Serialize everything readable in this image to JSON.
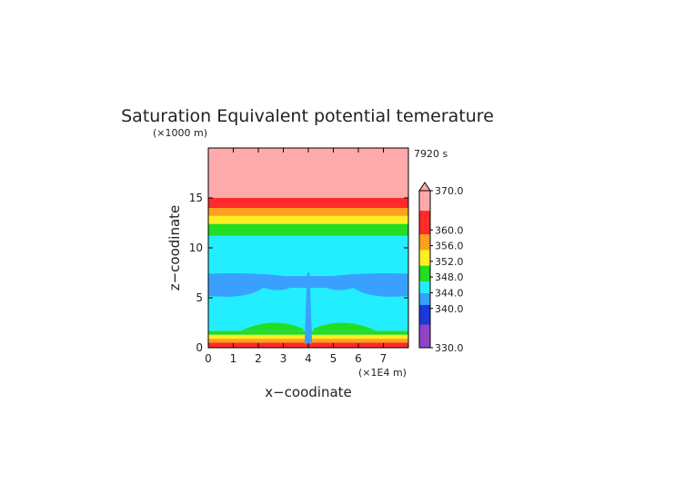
{
  "chart_data": {
    "type": "heatmap",
    "title": "Saturation Equivalent potential temerature",
    "xlabel": "x−coodinate",
    "ylabel": "z−coodinate",
    "x_unit": "(×1E4 m)",
    "y_unit": "(×1000 m)",
    "time_label": "7920 s",
    "xlim": [
      0,
      8
    ],
    "ylim": [
      0,
      20
    ],
    "x_ticks": [
      0,
      1,
      2,
      3,
      4,
      5,
      6,
      7
    ],
    "y_ticks": [
      0,
      5,
      10,
      15
    ],
    "colorbar": {
      "range": [
        330,
        370
      ],
      "tick_values": [
        370.0,
        360.0,
        356.0,
        352.0,
        348.0,
        344.0,
        340.0,
        330.0
      ],
      "tick_labels": [
        "370.0",
        "360.0",
        "356.0",
        "352.0",
        "348.0",
        "344.0",
        "340.0",
        "330.0"
      ],
      "extend": "max"
    },
    "field": [
      {
        "z": [
          0,
          0.5
        ],
        "value": 361
      },
      {
        "z": [
          0.5,
          0.9
        ],
        "value": 357
      },
      {
        "z": [
          0.9,
          1.3
        ],
        "value": 353
      },
      {
        "z": [
          1.3,
          1.7
        ],
        "value": 349
      },
      {
        "z": [
          1.7,
          6.0
        ],
        "value": 345
      },
      {
        "z": [
          6.0,
          7.2
        ],
        "value": 343
      },
      {
        "z": [
          7.2,
          11.2
        ],
        "value": 345
      },
      {
        "z": [
          11.2,
          12.4
        ],
        "value": 349
      },
      {
        "z": [
          12.4,
          13.2
        ],
        "value": 353
      },
      {
        "z": [
          13.2,
          14.0
        ],
        "value": 357
      },
      {
        "z": [
          14.0,
          15.0
        ],
        "value": 361
      },
      {
        "z": [
          15.0,
          20.0
        ],
        "value": 370
      }
    ]
  },
  "colors": {
    "violet": "#8e44c8",
    "blue": "#1c39d8",
    "sky": "#3aa0ff",
    "cyan": "#22eeff",
    "green": "#22dd22",
    "yellow": "#ffee22",
    "orange": "#ffa020",
    "red": "#ff2a2a",
    "pink": "#ffaaaa"
  }
}
